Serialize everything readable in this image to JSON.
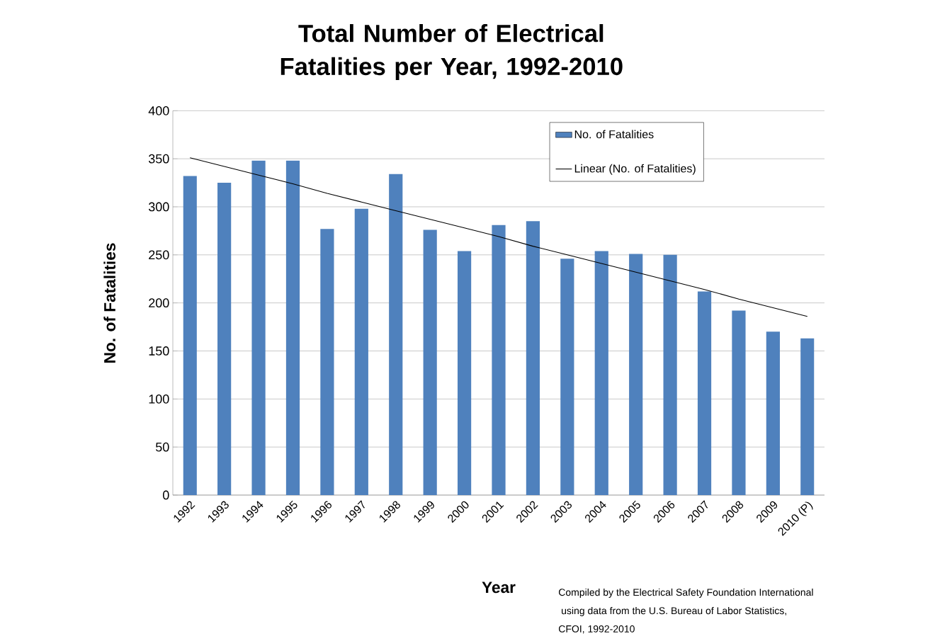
{
  "chart_data": {
    "type": "bar",
    "title": "Total Number of Electrical Fatalities per Year, 1992-2010",
    "xlabel": "Year",
    "ylabel": "No. of Fatalities",
    "categories": [
      "1992",
      "1993",
      "1994",
      "1995",
      "1996",
      "1997",
      "1998",
      "1999",
      "2000",
      "2001",
      "2002",
      "2003",
      "2004",
      "2005",
      "2006",
      "2007",
      "2008",
      "2009",
      "2010 (P)"
    ],
    "series": [
      {
        "name": "No. of Fatalities",
        "color": "#4f81bd",
        "values": [
          332,
          325,
          348,
          348,
          277,
          298,
          334,
          276,
          254,
          281,
          285,
          246,
          254,
          251,
          250,
          212,
          192,
          170,
          163
        ]
      },
      {
        "name": "Linear (No. of Fatalities)",
        "type": "line",
        "color": "#000000",
        "values": [
          351,
          342,
          333,
          324,
          314,
          305,
          296,
          287,
          278,
          269,
          259,
          250,
          241,
          232,
          223,
          214,
          204,
          195,
          186
        ]
      }
    ],
    "ylim": [
      0,
      400
    ],
    "yticks": [
      0,
      50,
      100,
      150,
      200,
      250,
      300,
      350,
      400
    ],
    "grid": "y",
    "legend": "top right",
    "annotations": [
      "Compiled by the Electrical Safety Foundation International",
      " using data from the U.S. Bureau of Labor Statistics,",
      "CFOI, 1992-2010"
    ]
  }
}
